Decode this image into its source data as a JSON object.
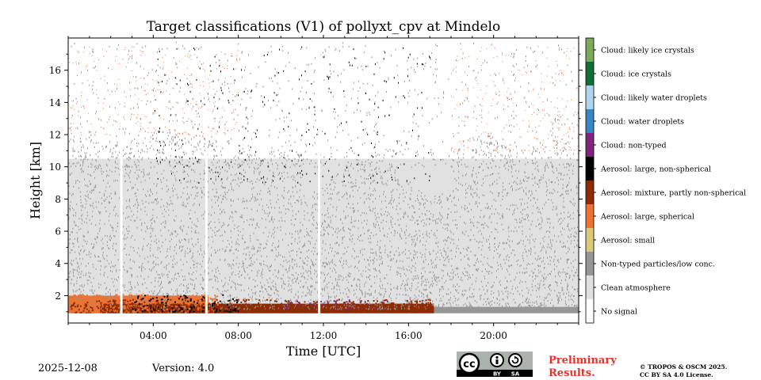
{
  "chart_data": {
    "type": "heatmap",
    "title": "Target classifications (V1) of pollyxt_cpv at Mindelo",
    "xlabel": "Time [UTC]",
    "ylabel": "Height [km]",
    "xlim_hours": [
      0,
      24
    ],
    "ylim_km": [
      0.3,
      18
    ],
    "x_ticks": [
      {
        "value": 4,
        "label": "04:00"
      },
      {
        "value": 8,
        "label": "08:00"
      },
      {
        "value": 12,
        "label": "12:00"
      },
      {
        "value": 16,
        "label": "16:00"
      },
      {
        "value": 20,
        "label": "20:00"
      }
    ],
    "y_ticks": [
      {
        "value": 2,
        "label": "2"
      },
      {
        "value": 4,
        "label": "4"
      },
      {
        "value": 6,
        "label": "6"
      },
      {
        "value": 8,
        "label": "8"
      },
      {
        "value": 10,
        "label": "10"
      },
      {
        "value": 12,
        "label": "12"
      },
      {
        "value": 14,
        "label": "14"
      },
      {
        "value": 16,
        "label": "16"
      }
    ],
    "classes": [
      {
        "label": "No signal",
        "color": "#ffffff"
      },
      {
        "label": "Clean atmosphere",
        "color": "#e1e1e1"
      },
      {
        "label": "Non-typed particles/low conc.",
        "color": "#969696"
      },
      {
        "label": "Aerosol: small",
        "color": "#dbc879"
      },
      {
        "label": "Aerosol: large, spherical",
        "color": "#ec7332"
      },
      {
        "label": "Aerosol: mixture, partly non-spherical",
        "color": "#8e2b02"
      },
      {
        "label": "Aerosol: large, non-spherical",
        "color": "#000000"
      },
      {
        "label": "Cloud: non-typed",
        "color": "#82237e"
      },
      {
        "label": "Cloud: water droplets",
        "color": "#3a85c4"
      },
      {
        "label": "Cloud: likely water droplets",
        "color": "#aed5ef"
      },
      {
        "label": "Cloud: ice crystals",
        "color": "#116e36"
      },
      {
        "label": "Cloud: likely ice crystals",
        "color": "#7caa58"
      }
    ],
    "regions": [
      {
        "class": "Clean atmosphere",
        "x_hours": [
          0,
          24
        ],
        "y_km": [
          0.9,
          10.5
        ]
      },
      {
        "class": "Non-typed particles/low conc.",
        "x_hours": [
          0,
          24
        ],
        "y_km": [
          0.9,
          1.3
        ]
      },
      {
        "class": "Aerosol: large, spherical",
        "x_hours": [
          0,
          6.6
        ],
        "y_km": [
          0.9,
          2.0
        ]
      },
      {
        "class": "Aerosol: mixture, partly non-spherical",
        "x_hours": [
          1.5,
          17.2
        ],
        "y_km": [
          0.9,
          1.5
        ]
      }
    ],
    "data_gaps_hours": [
      2.5,
      6.5,
      11.8
    ]
  },
  "footer": {
    "date": "2025-12-08",
    "version": "Version: 4.0",
    "preliminary_line1": "Preliminary",
    "preliminary_line2": "Results.",
    "copyright_line1": "© TROPOS & OSCM 2025.",
    "copyright_line2": "CC BY SA 4.0 License.",
    "license_badge": {
      "cc": "cc",
      "by": "BY",
      "sa": "SA"
    }
  }
}
